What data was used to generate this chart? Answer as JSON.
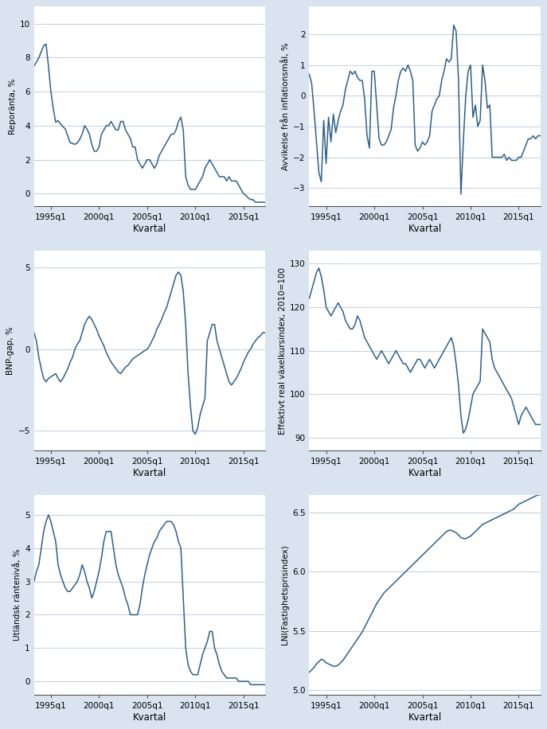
{
  "background_color": "#d9e4f0",
  "plot_bg_color": "#ffffff",
  "line_color": "#2d5f8a",
  "line_width": 1.1,
  "xlabel": "Kvartal",
  "xlim_start": 1993.25,
  "xlim_end": 2017.25,
  "xtick_positions": [
    1995,
    2000,
    2005,
    2010,
    2015
  ],
  "xtick_labels": [
    "1995q1",
    "2000q1",
    "2005q1",
    "2010q1",
    "2015q1"
  ],
  "plots": [
    {
      "ylabel": "Reporänta, %",
      "ylim": [
        -0.75,
        11.0
      ],
      "yticks": [
        0,
        2,
        4,
        6,
        8,
        10
      ]
    },
    {
      "ylabel": "Avvikelse från inflationsmål, %",
      "ylim": [
        -3.6,
        2.9
      ],
      "yticks": [
        -3,
        -2,
        -1,
        0,
        1,
        2
      ]
    },
    {
      "ylabel": "BNP-gap, %",
      "ylim": [
        -6.2,
        6.0
      ],
      "yticks": [
        -5,
        0,
        5
      ]
    },
    {
      "ylabel": "Effektivt real växelkursindex, 2010=100",
      "ylim": [
        87,
        133
      ],
      "yticks": [
        90,
        100,
        110,
        120,
        130
      ]
    },
    {
      "ylabel": "Utländsk räntenivå, %",
      "ylim": [
        -0.4,
        5.6
      ],
      "yticks": [
        0,
        1,
        2,
        3,
        4,
        5
      ]
    },
    {
      "ylabel": "LNI(Fastighetsprisindex)",
      "ylim": [
        4.96,
        6.65
      ],
      "yticks": [
        5.0,
        5.5,
        6.0,
        6.5
      ]
    }
  ]
}
